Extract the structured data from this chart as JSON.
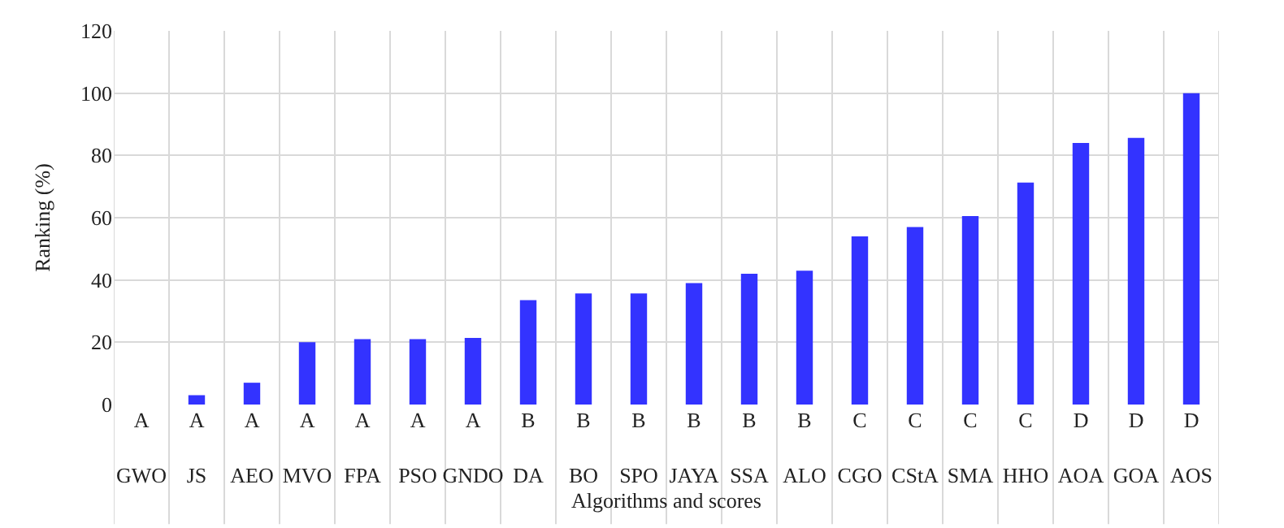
{
  "chart_data": {
    "type": "bar",
    "xlabel": "Algorithms and scores",
    "ylabel": "Ranking (%)",
    "categories": [
      "A\nGWO",
      "A\nJS",
      "A\nAEO",
      "A\nMVO",
      "A\nFPA",
      "A\nPSO",
      "A\nGNDO",
      "B\nDA",
      "B\nBO",
      "B\nSPO",
      "B\nJAYA",
      "B\nSSA",
      "B\nALO",
      "C\nCGO",
      "C\nCStA",
      "C\nSMA",
      "C\nHHO",
      "D\nAOA",
      "D\nGOA",
      "D\nAOS"
    ],
    "values": [
      0,
      3,
      7,
      20,
      21,
      21,
      21.4,
      33.5,
      35.7,
      35.7,
      39,
      42,
      43,
      54,
      57,
      60.5,
      71.3,
      84,
      85.6,
      100
    ],
    "color": "#3333ff",
    "ylim": [
      0,
      120
    ],
    "yticks": [
      0,
      20,
      40,
      60,
      80,
      100,
      120
    ],
    "grid": true,
    "legend": false
  }
}
